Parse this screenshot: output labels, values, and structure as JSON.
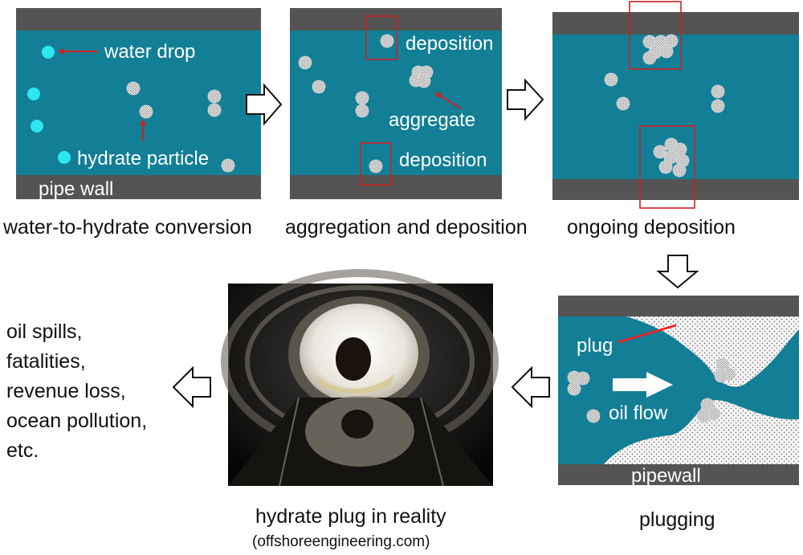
{
  "panels": {
    "conversion": {
      "water_drop_label": "water drop",
      "hydrate_particle_label": "hydrate particle",
      "pipe_wall_label": "pipe wall",
      "caption": "water-to-hydrate conversion"
    },
    "aggregation": {
      "deposition_top_label": "deposition",
      "aggregate_label": "aggregate",
      "deposition_bottom_label": "deposition",
      "caption": "aggregation and deposition"
    },
    "ongoing": {
      "caption": "ongoing deposition"
    },
    "plugging": {
      "plug_label": "plug",
      "oil_flow_label": "oil flow",
      "pipewall_label": "pipewall",
      "caption": "plugging"
    },
    "photo": {
      "caption": "hydrate plug in reality",
      "source": "(offshoreengineering.com)"
    },
    "consequences": {
      "lines": [
        "oil spills,",
        "fatalities,",
        "revenue loss,",
        "ocean pollution,",
        "etc."
      ]
    }
  },
  "colors": {
    "water": "#127f96",
    "pipe_wall": "#545454",
    "water_drop": "#2ee6f2",
    "highlight": "#d02020",
    "plug_fill": "#f2f2f2"
  },
  "icons": {
    "arrow_right": "hollow-right-arrow",
    "arrow_down": "hollow-down-arrow",
    "arrow_left": "hollow-left-arrow",
    "hydrate": "hatched-hydrate-particle"
  }
}
